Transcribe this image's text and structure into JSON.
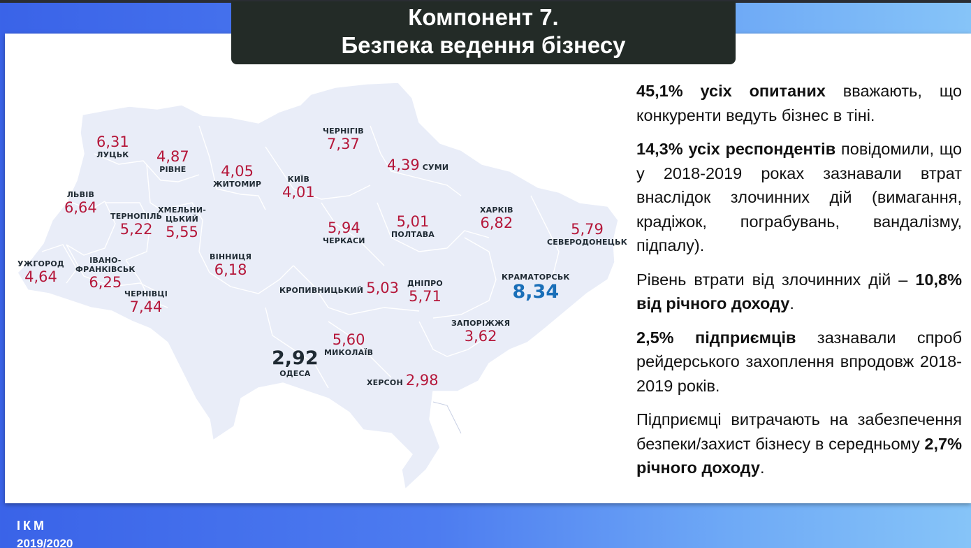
{
  "title": {
    "line1": "Компонент 7.",
    "line2": "Безпека ведення бізнесу"
  },
  "map": {
    "highlight_color": "#1a6fb8",
    "value_color": "#b5173a",
    "regions": [
      {
        "name": "ЛУЦЬК",
        "value": "6,31"
      },
      {
        "name": "РІВНЕ",
        "value": "4,87"
      },
      {
        "name": "ЖИТОМИР",
        "value": "4,05"
      },
      {
        "name": "ЧЕРНІГІВ",
        "value": "7,37"
      },
      {
        "name": "СУМИ",
        "value": "4,39"
      },
      {
        "name": "ЛЬВІВ",
        "value": "6,64"
      },
      {
        "name": "КИЇВ",
        "value": "4,01"
      },
      {
        "name": "ТЕРНОПІЛЬ",
        "value": "5,22"
      },
      {
        "name": "ХМЕЛЬНИ-\nЦЬКИЙ",
        "value": "5,55"
      },
      {
        "name": "ЧЕРКАСИ",
        "value": "5,94"
      },
      {
        "name": "ПОЛТАВА",
        "value": "5,01"
      },
      {
        "name": "ХАРКІВ",
        "value": "6,82"
      },
      {
        "name": "СЕВЕРОДОНЕЦЬК",
        "value": "5,79"
      },
      {
        "name": "УЖГОРОД",
        "value": "4,64"
      },
      {
        "name": "ІВАНО-\nФРАНКІВСЬК",
        "value": "6,25"
      },
      {
        "name": "ВІННИЦЯ",
        "value": "6,18"
      },
      {
        "name": "ЧЕРНІВЦІ",
        "value": "7,44"
      },
      {
        "name": "КРОПИВНИЦЬКИЙ",
        "value": "5,03"
      },
      {
        "name": "ДНІПРО",
        "value": "5,71"
      },
      {
        "name": "КРАМАТОРСЬК",
        "value": "8,34"
      },
      {
        "name": "ЗАПОРІЖЖЯ",
        "value": "3,62"
      },
      {
        "name": "МИКОЛАЇВ",
        "value": "5,60"
      },
      {
        "name": "ОДЕСА",
        "value": "2,92"
      },
      {
        "name": "ХЕРСОН",
        "value": "2,98"
      }
    ]
  },
  "paragraphs": [
    {
      "bold": "45,1% усіх опитаних",
      "text": " вважають, що конкуренти ведуть бізнес в тіні."
    },
    {
      "bold": "14,3% усіх респондентів",
      "text": " повідомили, що у 2018-2019 роках зазнавали втрат внаслідок злочинних дій (вимагання, крадіжок, пограбувань, вандалізму, підпалу)."
    },
    {
      "text": "Рівень втрати від злочинних дій – ",
      "bold": "10,8% від річного доходу",
      "tail": "."
    },
    {
      "bold": "2,5% підприємців",
      "text": " зазнавали спроб рейдерського захоплення впродовж 2018-2019 років."
    },
    {
      "text": "Підприємці витрачають на забезпечення безпеки/захист бізнесу в середньому ",
      "bold": "2,7% річного доходу",
      "tail": "."
    }
  ],
  "footer": {
    "org": "ІКМ",
    "year": "2019/2020"
  }
}
